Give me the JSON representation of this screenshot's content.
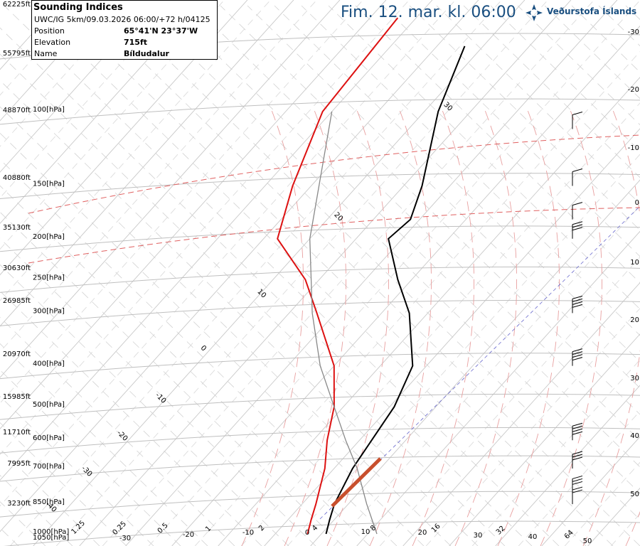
{
  "header": {
    "title": "Fim. 12. mar. kl. 06:00",
    "brand": "Veðurstofa Íslands",
    "brand_color": "#1a4f80"
  },
  "info": {
    "title": "Sounding Indices",
    "model_line": "UWC/IG 5km/09.03.2026 06:00/+72 h/04125",
    "rows": [
      {
        "label": "Position",
        "value": "65°41'N 23°37'W"
      },
      {
        "label": "Elevation",
        "value": "715ft"
      },
      {
        "label": "Name",
        "value": "Bíldudalur"
      }
    ]
  },
  "chart_data": {
    "type": "line",
    "subtype": "skew-T log-P sounding",
    "altitude_labels": [
      "62225ft",
      "55795ft",
      "48870ft",
      "40880ft",
      "35130ft",
      "30630ft",
      "26985ft",
      "20970ft",
      "15985ft",
      "11710ft",
      "7995ft",
      "3230ft"
    ],
    "pressure_labels": [
      "100[hPa]",
      "150[hPa]",
      "200[hPa]",
      "250[hPa]",
      "300[hPa]",
      "400[hPa]",
      "500[hPa]",
      "600[hPa]",
      "700[hPa]",
      "850[hPa]",
      "1000[hPa]",
      "1050[hPa]"
    ],
    "pressure_levels": [
      100,
      150,
      200,
      250,
      300,
      400,
      500,
      600,
      700,
      850,
      1000,
      1050
    ],
    "right_axis_labels": [
      "-30",
      "-20",
      "-10",
      "0",
      "10",
      "20",
      "30",
      "40",
      "50"
    ],
    "bottom_labels": [
      "1.25",
      "-30",
      "0.25",
      "0.5",
      "-20",
      "1",
      "-10",
      "2",
      "0",
      "4",
      "10",
      "8",
      "20",
      "16",
      "30",
      "32",
      "40",
      "64",
      "50"
    ],
    "isotherm_labels": [
      "30",
      "20",
      "10",
      "0",
      "-10",
      "-20",
      "-30",
      "-40"
    ],
    "series": [
      {
        "name": "temperature",
        "color": "#000000",
        "points": [
          [
            1000,
            1
          ],
          [
            925,
            -1
          ],
          [
            850,
            -3
          ],
          [
            700,
            -6
          ],
          [
            500,
            -9
          ],
          [
            400,
            -13
          ],
          [
            300,
            -24
          ],
          [
            250,
            -33
          ],
          [
            200,
            -43
          ],
          [
            180,
            -42
          ],
          [
            150,
            -46
          ],
          [
            100,
            -57
          ],
          [
            70,
            -64
          ]
        ]
      },
      {
        "name": "dewpoint",
        "color": "#dd1111",
        "points": [
          [
            1000,
            -3
          ],
          [
            925,
            -5
          ],
          [
            850,
            -7
          ],
          [
            700,
            -12
          ],
          [
            600,
            -17
          ],
          [
            500,
            -22
          ],
          [
            400,
            -30
          ],
          [
            300,
            -44
          ],
          [
            250,
            -53
          ],
          [
            200,
            -67
          ],
          [
            150,
            -74
          ],
          [
            100,
            -82
          ],
          [
            60,
            -84
          ]
        ]
      },
      {
        "name": "parcel",
        "color": "#888888",
        "points": [
          [
            1000,
            12
          ],
          [
            850,
            4
          ],
          [
            700,
            -5
          ],
          [
            600,
            -13
          ],
          [
            500,
            -22
          ],
          [
            400,
            -33
          ],
          [
            300,
            -45
          ],
          [
            200,
            -60
          ],
          [
            100,
            -80
          ]
        ]
      }
    ],
    "lines_color": {
      "isotherm": "#c8c8c8",
      "isobar": "#bfbfbf",
      "dry_adiabat": "#bbbbbb",
      "moist_adiabat": "#e8a0a0",
      "mixing_ratio": "#d0a0c8",
      "freezing": "#e06060"
    },
    "wind_barbs": [
      {
        "pressure": 110,
        "speed_kt": 10
      },
      {
        "pressure": 150,
        "speed_kt": 5
      },
      {
        "pressure": 180,
        "speed_kt": 10
      },
      {
        "pressure": 200,
        "speed_kt": 25
      },
      {
        "pressure": 300,
        "speed_kt": 35
      },
      {
        "pressure": 400,
        "speed_kt": 35
      },
      {
        "pressure": 600,
        "speed_kt": 35
      },
      {
        "pressure": 700,
        "speed_kt": 30
      },
      {
        "pressure": 800,
        "speed_kt": 25
      },
      {
        "pressure": 850,
        "speed_kt": 20
      }
    ],
    "grid": true
  }
}
